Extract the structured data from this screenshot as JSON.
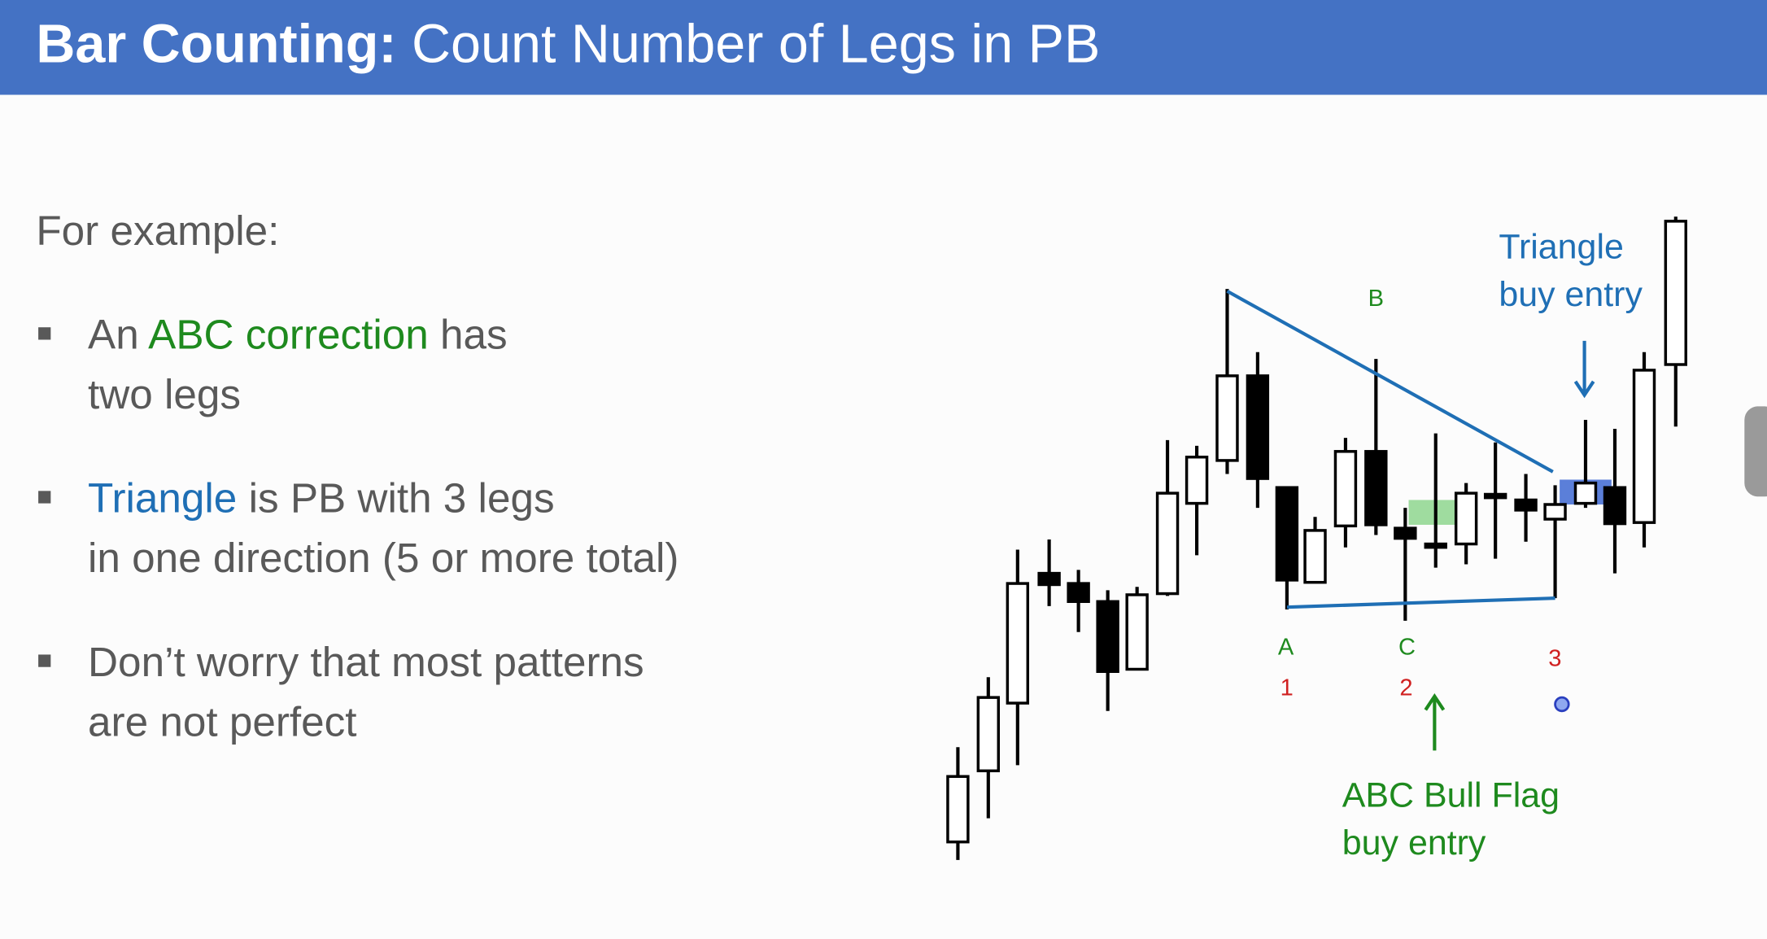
{
  "header": {
    "title_bold": "Bar Counting:",
    "title_rest": " Count Number of Legs in PB"
  },
  "intro": "For example:",
  "bullets": [
    {
      "lines": [
        [
          "An ",
          "ABC correction",
          " has"
        ],
        [
          "two legs"
        ]
      ]
    },
    {
      "lines": [
        [
          "Triangle",
          " is PB with 3 legs"
        ],
        [
          "in one direction (5 or more total)"
        ]
      ]
    },
    {
      "lines": [
        [
          "Don’t worry that most patterns"
        ],
        [
          "are not perfect"
        ]
      ]
    }
  ],
  "diagram": {
    "label_b": "B",
    "triangle_entry": [
      "Triangle",
      "buy entry"
    ],
    "label_a": "A",
    "label_c": "C",
    "count_1": "1",
    "count_2": "2",
    "count_3": "3",
    "flag_entry": [
      "ABC Bull Flag",
      "buy entry"
    ]
  }
}
